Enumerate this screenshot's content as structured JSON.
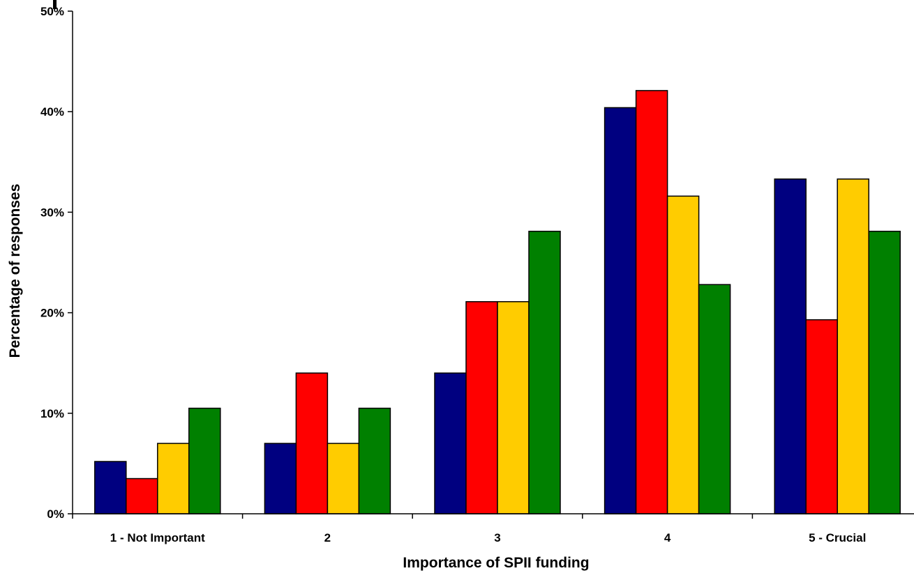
{
  "chart_data": {
    "type": "bar",
    "title": "",
    "xlabel": "Importance of SPII funding",
    "ylabel": "Percentage of responses",
    "categories": [
      "1 - Not Important",
      "2",
      "3",
      "4",
      "5 - Crucial"
    ],
    "ylim": [
      0,
      50
    ],
    "yticks": [
      "0%",
      "10%",
      "20%",
      "30%",
      "40%",
      "50%"
    ],
    "grid": false,
    "legend": "none",
    "series": [
      {
        "color": "#000080",
        "values": [
          5.2,
          7.0,
          14.0,
          40.4,
          33.3
        ]
      },
      {
        "color": "#ff0000",
        "values": [
          3.5,
          14.0,
          21.1,
          42.1,
          19.3
        ]
      },
      {
        "color": "#ffcc00",
        "values": [
          7.0,
          7.0,
          21.1,
          31.6,
          33.3
        ]
      },
      {
        "color": "#008000",
        "values": [
          10.5,
          10.5,
          28.1,
          22.8,
          28.1
        ]
      }
    ]
  }
}
